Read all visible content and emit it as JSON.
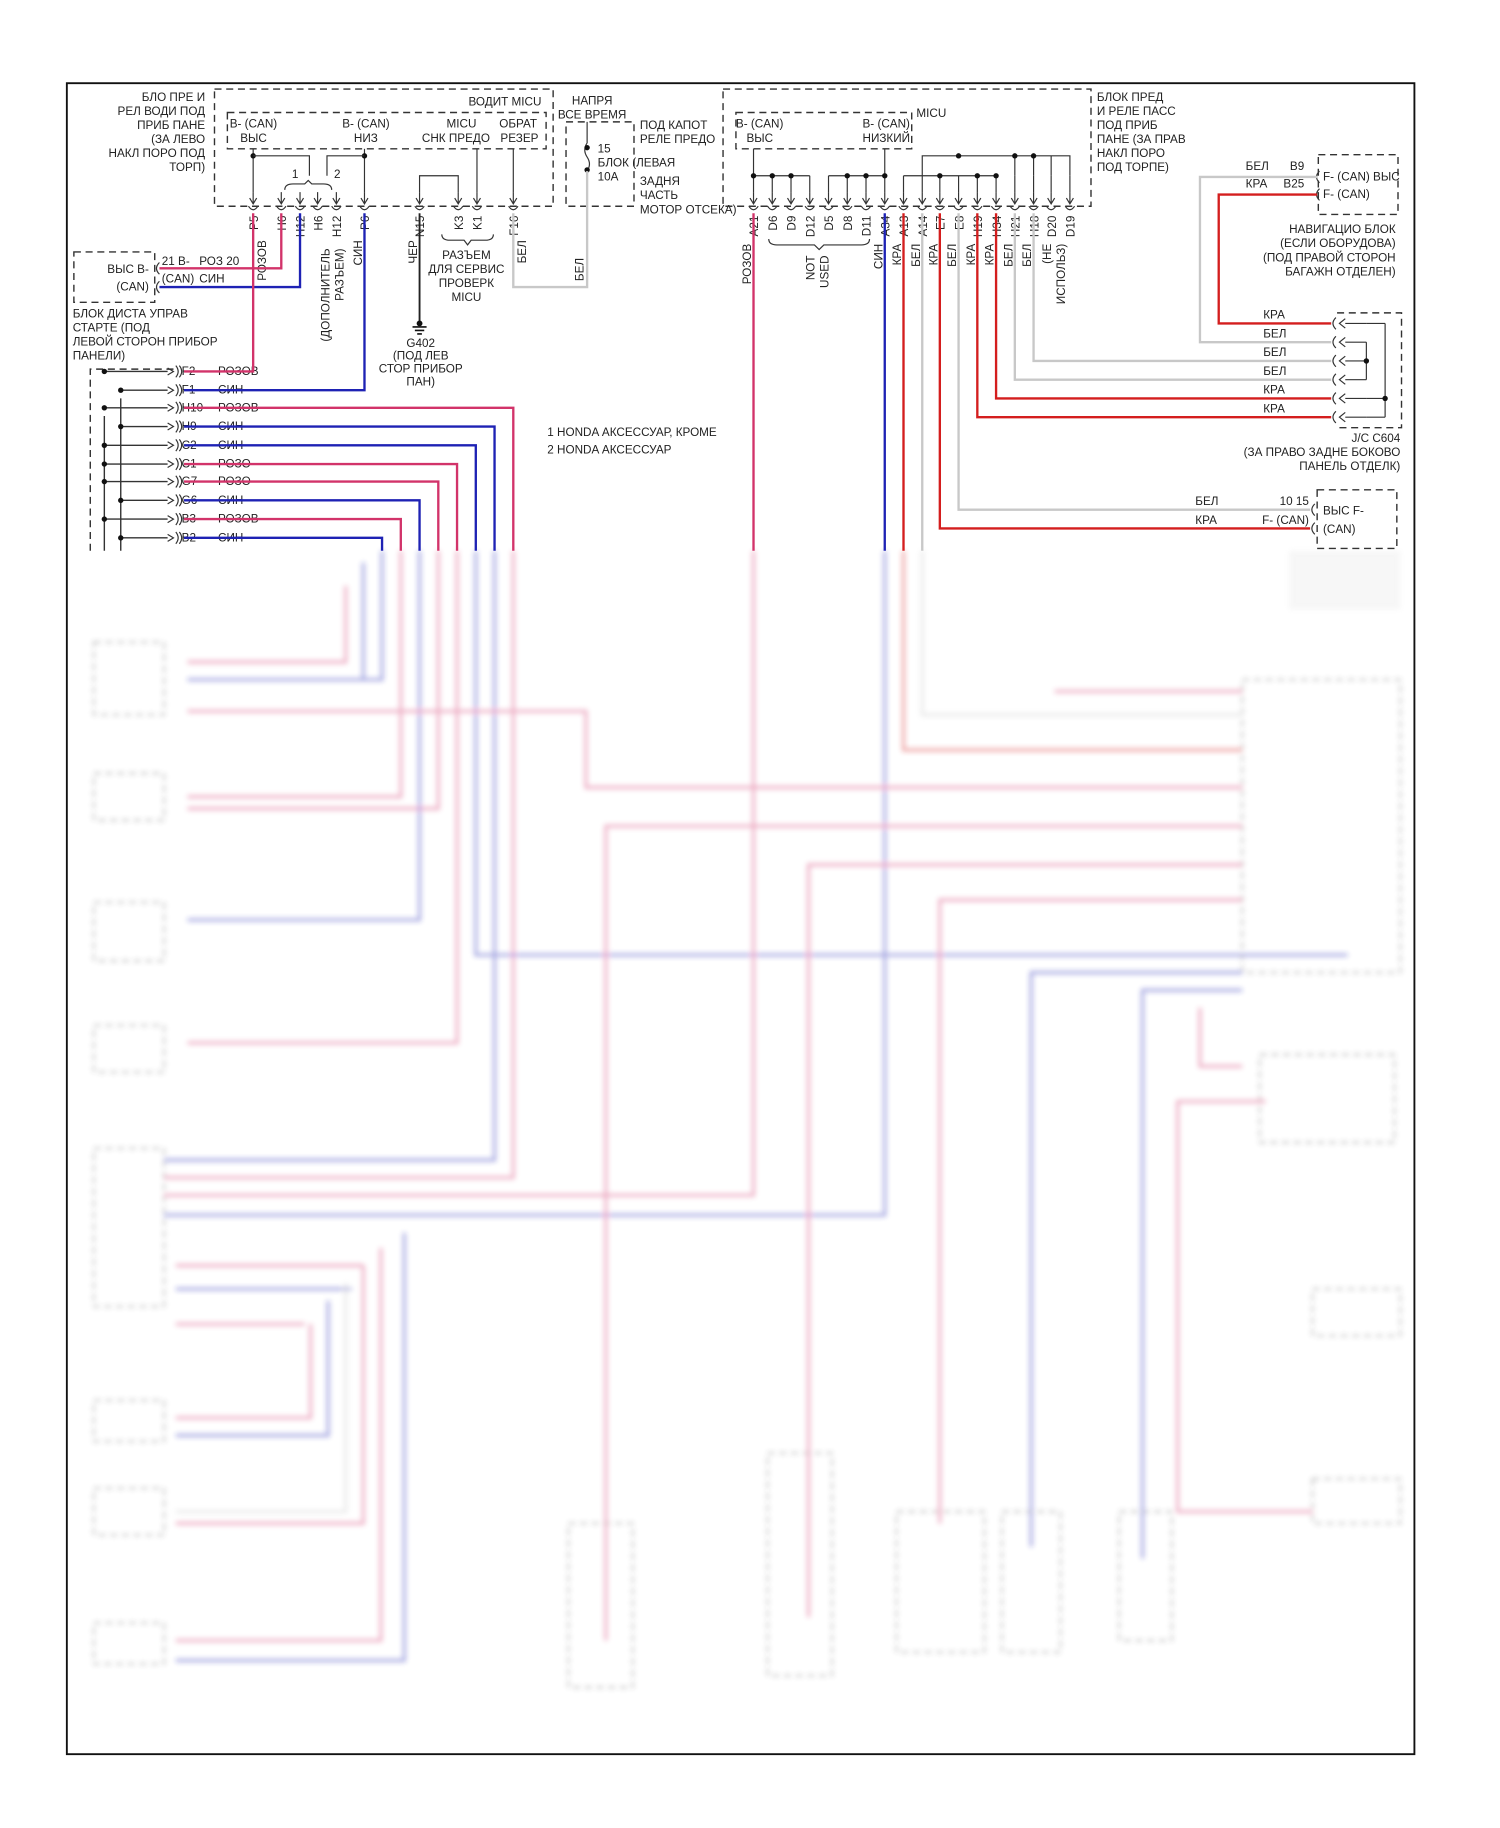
{
  "colors": {
    "pink_wire": "#d2336a",
    "blue_wire": "#1e22b4",
    "red_wire": "#d41e1e",
    "white_wire": "#c8c8c8",
    "black_wire": "#222222",
    "frame": "#111111"
  },
  "driver_fuse_box": {
    "title_lines": [
      "БЛО ПРЕ И",
      "РЕЛ ВОДИ ПОД",
      "ПРИБ ПАНЕ",
      "(ЗА ЛЕВО",
      "НАКЛ ПОРО ПОД",
      "ТОРП)"
    ],
    "micu_label": "ВОДИТ MICU",
    "can_high": [
      "B- (CAN)",
      "ВЫС"
    ],
    "can_low": [
      "B- (CAN)",
      "НИЗ"
    ],
    "micu_check": [
      "MICU",
      "СНК ПРЕДО"
    ],
    "backup": [
      "ОБРАТ",
      "РЕЗЕР"
    ],
    "option_marks": [
      "1",
      "2"
    ],
    "pins": [
      "P5",
      "H6",
      "H12",
      "H6",
      "H12",
      "P6",
      "N15",
      "K3",
      "K1",
      "F16"
    ],
    "wire_labels": {
      "p5": "РОЗОВ",
      "extra_connector": [
        "(ДОПОЛНИТЕЛЬ",
        "РАЗЪЕМ)"
      ],
      "p6": "СИН",
      "n15": "ЧЕР",
      "f16": "БЕЛ"
    },
    "service_connector": [
      "РАЗЪЕМ",
      "ДЛЯ СЕРВИС",
      "ПРОВЕРК",
      "MICU"
    ]
  },
  "ground": {
    "id": "G402",
    "location": [
      "(ПОД ЛЕВ",
      "СТОР ПРИБОР",
      "ПАН)"
    ]
  },
  "fuse": {
    "header": [
      "НАПРЯ",
      "ВСЕ ВРЕМЯ"
    ],
    "number": "15",
    "block": "БЛОК (ЛЕВАЯ",
    "rating": "10A",
    "location": [
      "ПОД КАПОТ",
      "РЕЛЕ ПРЕДО",
      "ЗАДНЯ",
      "ЧАСТЬ",
      "МОТОР ОТСЕКА)"
    ],
    "wire_label": "БЕЛ"
  },
  "remote_start": {
    "box": [
      "ВЫС B-",
      "(CAN)"
    ],
    "pins": [
      "21 B-",
      "(CAN)"
    ],
    "wire_labels": [
      "РОЗ 20",
      "СИН"
    ],
    "title_lines": [
      "БЛОК ДИСТА УПРАВ",
      "СТАРТЕ (ПОД",
      "ЛЕВОЙ СТОРОН ПРИБОР",
      "ПАНЕЛИ)"
    ]
  },
  "left_connector_rows": [
    {
      "pin": "F2",
      "color": "РОЗОВ"
    },
    {
      "pin": "F1",
      "color": "СИН"
    },
    {
      "pin": "H10",
      "color": "РОЗОВ"
    },
    {
      "pin": "H9",
      "color": "СИН"
    },
    {
      "pin": "C2",
      "color": "СИН"
    },
    {
      "pin": "C1",
      "color": "РОЗО"
    },
    {
      "pin": "G7",
      "color": "РОЗО"
    },
    {
      "pin": "G6",
      "color": "СИН"
    },
    {
      "pin": "B3",
      "color": "РОЗОВ"
    },
    {
      "pin": "B2",
      "color": "СИН"
    }
  ],
  "notes": [
    "1  HONDA АКСЕССУАР, КРОМЕ",
    "2  HONDA АКСЕССУАР"
  ],
  "passenger_fuse_box": {
    "title_lines": [
      "БЛОК ПРЕД",
      "И РЕЛЕ ПАСС",
      "ПОД ПРИБ",
      "ПАНЕ (ЗА ПРАВ",
      "НАКЛ ПОРО",
      "ПОД ТОРПЕ)"
    ],
    "micu_label": "MICU",
    "can_high": [
      "B- (CAN)",
      "ВЫС"
    ],
    "can_low": [
      "B- (CAN)",
      "НИЗКИЙ"
    ],
    "pins": [
      "A21",
      "D6",
      "D9",
      "D12",
      "D5",
      "D8",
      "D11",
      "A34",
      "A13",
      "A14",
      "E7",
      "E8",
      "H19",
      "H34",
      "H21",
      "H18",
      "D20",
      "D19"
    ],
    "wire_labels": [
      "РОЗОВ",
      "СИН",
      "КРА",
      "БЕЛ",
      "КРА",
      "БЕЛ",
      "КРА",
      "КРА",
      "БЕЛ",
      "БЕЛ"
    ],
    "not_used": [
      "NOT",
      "USED"
    ],
    "not_in_use": [
      "(НЕ",
      "ИСПОЛЬЗ)"
    ]
  },
  "navigation_unit": {
    "pins": [
      {
        "color": "БЕЛ",
        "pin": "B9",
        "signal": "F- (CAN) ВЫС"
      },
      {
        "color": "КРА",
        "pin": "B25",
        "signal": "F- (CAN)"
      }
    ],
    "title_lines": [
      "НАВИГАЦИО БЛОК",
      "(ЕСЛИ ОБОРУДОВА)",
      "(ПОД ПРАВОЙ СТОРОН",
      "БАГАЖН ОТДЕЛЕН)"
    ]
  },
  "jc_c604": {
    "rows": [
      "КРА",
      "БЕЛ",
      "БЕЛ",
      "БЕЛ",
      "КРА",
      "КРА"
    ],
    "title_lines": [
      "J/C C604",
      "(ЗА ПРАВО ЗАДНЕ БОКОВО",
      "ПАНЕЛЬ ОТДЕЛК)"
    ]
  },
  "rear_unit": {
    "pins": [
      {
        "color": "БЕЛ",
        "pin": "10 15"
      },
      {
        "color": "КРА",
        "pin": "F- (CAN)"
      }
    ],
    "box": [
      "ВЫС F-",
      "(CAN)"
    ]
  }
}
